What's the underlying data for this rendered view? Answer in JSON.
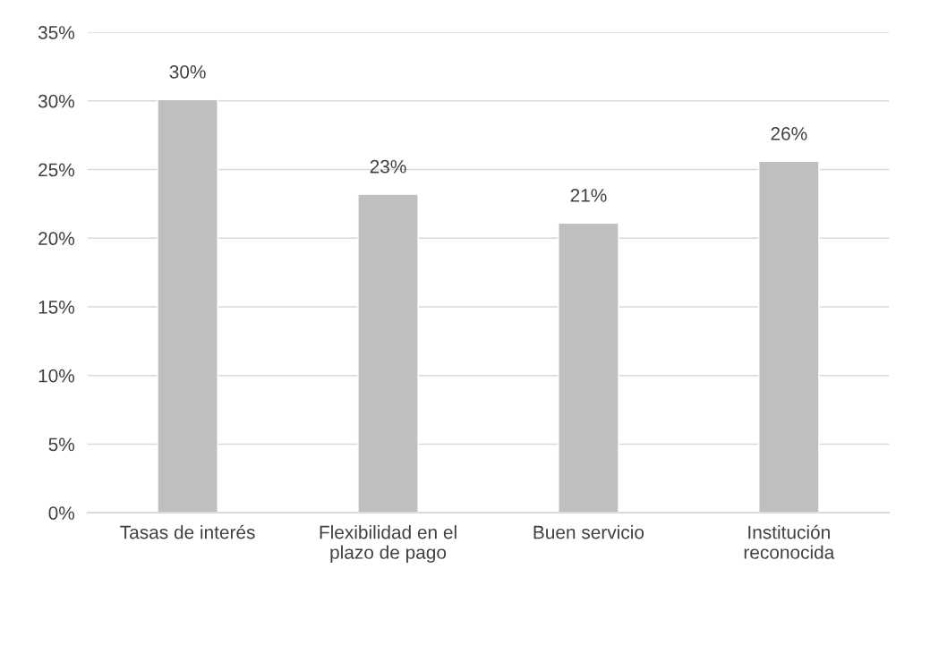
{
  "chart_data": {
    "type": "bar",
    "categories": [
      "Tasas de interés",
      "Flexibilidad en el\nplazo de pago",
      "Buen servicio",
      "Institución\nreconocida"
    ],
    "values": [
      30.1,
      23.2,
      21.1,
      25.6
    ],
    "value_labels": [
      "30%",
      "23%",
      "21%",
      "26%"
    ],
    "color": "#bfbfbf",
    "ylim": [
      0,
      35
    ],
    "yticks": [
      {
        "value": 0,
        "label": "0%"
      },
      {
        "value": 5,
        "label": "5%"
      },
      {
        "value": 10,
        "label": "10%"
      },
      {
        "value": 15,
        "label": "15%"
      },
      {
        "value": 20,
        "label": "20%"
      },
      {
        "value": 25,
        "label": "25%"
      },
      {
        "value": 30,
        "label": "30%"
      },
      {
        "value": 35,
        "label": "35%"
      }
    ],
    "grid": "y",
    "legend": false
  }
}
